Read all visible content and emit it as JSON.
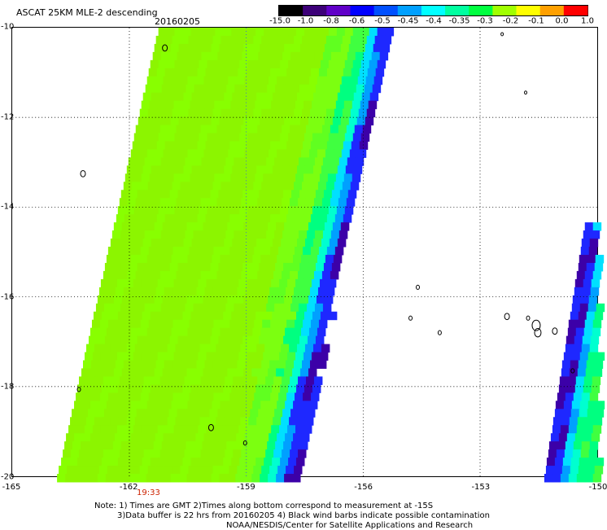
{
  "header": {
    "title": "ASCAT 25KM MLE-2 descending",
    "date": "20160205"
  },
  "colorbar": {
    "labels": [
      "-15.0",
      "-1.0",
      "-0.8",
      "-0.6",
      "-0.5",
      "-0.45",
      "-0.4",
      "-0.35",
      "-0.3",
      "-0.2",
      "-0.1",
      "0.0",
      "1.0"
    ],
    "colors": [
      "#000000",
      "#3c0078",
      "#6000c8",
      "#0000ff",
      "#0050ff",
      "#00a0ff",
      "#00ffff",
      "#00ffa0",
      "#00ff40",
      "#a0ff00",
      "#ffff00",
      "#ffa000",
      "#ff0000"
    ]
  },
  "map": {
    "x_labels": [
      "-165",
      "-162",
      "-159",
      "-156",
      "-153",
      "-150"
    ],
    "y_labels": [
      "-10",
      "-12",
      "-14",
      "-16",
      "-18",
      "-20"
    ],
    "lon_range": [
      -165,
      -150
    ],
    "lat_range": [
      -20,
      -10
    ],
    "swaths": [
      "west swath",
      "east swath edge"
    ]
  },
  "time_label": "19:33",
  "notes": {
    "line1": "Note: 1) Times are GMT 2)Times along bottom correspond to measurement at -15S",
    "line2": "3)Data buffer is 22 hrs from 20160205 4) Black wind barbs indicate possible contamination",
    "line3": "NOAA/NESDIS/Center for Satellite Applications and Research"
  }
}
